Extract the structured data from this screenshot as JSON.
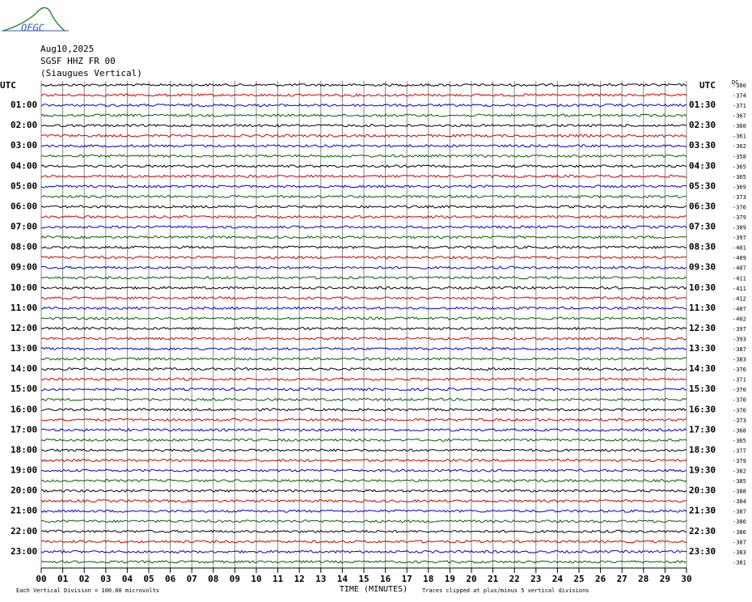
{
  "logo": "OFGC",
  "header": {
    "date": "Aug10,2025",
    "station": "SGSF HHZ FR 00",
    "location": "(Siaugues Vertical)"
  },
  "left_top": "UTC",
  "right_top": "UTC",
  "dc_label": "DC",
  "rows": [
    {
      "left": null,
      "right": null,
      "dc": -380,
      "color": "#000000"
    },
    {
      "left": null,
      "right": null,
      "dc": -374,
      "color": "#d00000"
    },
    {
      "left": "01:00",
      "right": "01:30",
      "dc": -371,
      "color": "#0000d0"
    },
    {
      "left": null,
      "right": null,
      "dc": -367,
      "color": "#006000"
    },
    {
      "left": "02:00",
      "right": "02:30",
      "dc": -360,
      "color": "#000000"
    },
    {
      "left": null,
      "right": null,
      "dc": -361,
      "color": "#d00000"
    },
    {
      "left": "03:00",
      "right": "03:30",
      "dc": -362,
      "color": "#0000d0"
    },
    {
      "left": null,
      "right": null,
      "dc": -358,
      "color": "#006000"
    },
    {
      "left": "04:00",
      "right": "04:30",
      "dc": -365,
      "color": "#000000"
    },
    {
      "left": null,
      "right": null,
      "dc": -365,
      "color": "#d00000"
    },
    {
      "left": "05:00",
      "right": "05:30",
      "dc": -369,
      "color": "#0000d0"
    },
    {
      "left": null,
      "right": null,
      "dc": -373,
      "color": "#006000"
    },
    {
      "left": "06:00",
      "right": "06:30",
      "dc": -376,
      "color": "#000000"
    },
    {
      "left": null,
      "right": null,
      "dc": -379,
      "color": "#d00000"
    },
    {
      "left": "07:00",
      "right": "07:30",
      "dc": -389,
      "color": "#0000d0"
    },
    {
      "left": null,
      "right": null,
      "dc": -397,
      "color": "#006000"
    },
    {
      "left": "08:00",
      "right": "08:30",
      "dc": -401,
      "color": "#000000"
    },
    {
      "left": null,
      "right": null,
      "dc": -409,
      "color": "#d00000"
    },
    {
      "left": "09:00",
      "right": "09:30",
      "dc": -407,
      "color": "#0000d0"
    },
    {
      "left": null,
      "right": null,
      "dc": -411,
      "color": "#006000"
    },
    {
      "left": "10:00",
      "right": "10:30",
      "dc": -411,
      "color": "#000000"
    },
    {
      "left": null,
      "right": null,
      "dc": -412,
      "color": "#d00000"
    },
    {
      "left": "11:00",
      "right": "11:30",
      "dc": -407,
      "color": "#0000d0"
    },
    {
      "left": null,
      "right": null,
      "dc": -402,
      "color": "#006000"
    },
    {
      "left": "12:00",
      "right": "12:30",
      "dc": -397,
      "color": "#000000"
    },
    {
      "left": null,
      "right": null,
      "dc": -393,
      "color": "#d00000"
    },
    {
      "left": "13:00",
      "right": "13:30",
      "dc": -387,
      "color": "#0000d0"
    },
    {
      "left": null,
      "right": null,
      "dc": -383,
      "color": "#006000"
    },
    {
      "left": "14:00",
      "right": "14:30",
      "dc": -376,
      "color": "#000000"
    },
    {
      "left": null,
      "right": null,
      "dc": -371,
      "color": "#d00000"
    },
    {
      "left": "15:00",
      "right": "15:30",
      "dc": -370,
      "color": "#0000d0"
    },
    {
      "left": null,
      "right": null,
      "dc": -370,
      "color": "#006000"
    },
    {
      "left": "16:00",
      "right": "16:30",
      "dc": -370,
      "color": "#000000"
    },
    {
      "left": null,
      "right": null,
      "dc": -373,
      "color": "#d00000"
    },
    {
      "left": "17:00",
      "right": "17:30",
      "dc": -368,
      "color": "#0000d0"
    },
    {
      "left": null,
      "right": null,
      "dc": -365,
      "color": "#006000"
    },
    {
      "left": "18:00",
      "right": "18:30",
      "dc": -377,
      "color": "#000000"
    },
    {
      "left": null,
      "right": null,
      "dc": -379,
      "color": "#d00000"
    },
    {
      "left": "19:00",
      "right": "19:30",
      "dc": -382,
      "color": "#0000d0"
    },
    {
      "left": null,
      "right": null,
      "dc": -385,
      "color": "#006000"
    },
    {
      "left": "20:00",
      "right": "20:30",
      "dc": -388,
      "color": "#000000"
    },
    {
      "left": null,
      "right": null,
      "dc": -384,
      "color": "#d00000"
    },
    {
      "left": "21:00",
      "right": "21:30",
      "dc": -387,
      "color": "#0000d0"
    },
    {
      "left": null,
      "right": null,
      "dc": -386,
      "color": "#006000"
    },
    {
      "left": "22:00",
      "right": "22:30",
      "dc": -386,
      "color": "#000000"
    },
    {
      "left": null,
      "right": null,
      "dc": -387,
      "color": "#d00000"
    },
    {
      "left": "23:00",
      "right": "23:30",
      "dc": -383,
      "color": "#0000d0"
    },
    {
      "left": null,
      "right": null,
      "dc": -381,
      "color": "#006000"
    }
  ],
  "x_ticks": [
    "00",
    "01",
    "02",
    "03",
    "04",
    "05",
    "06",
    "07",
    "08",
    "09",
    "10",
    "11",
    "12",
    "13",
    "14",
    "15",
    "16",
    "17",
    "18",
    "19",
    "20",
    "21",
    "22",
    "23",
    "24",
    "25",
    "26",
    "27",
    "28",
    "29",
    "30"
  ],
  "footer": {
    "scale": "Each Vertical Division =  100.00 microvolts",
    "axis_title": "TIME (MINUTES)",
    "clip_note": "Traces clipped at plus/minus 5 vertical divisions"
  }
}
